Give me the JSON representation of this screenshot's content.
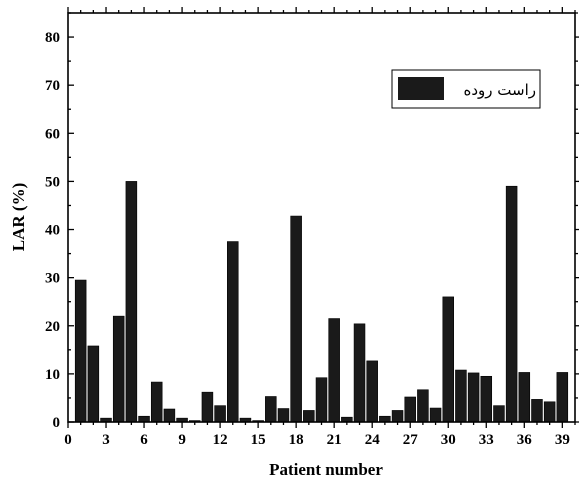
{
  "chart_data": {
    "type": "bar",
    "xlabel": "Patient number",
    "ylabel": "LAR (%)",
    "xlim": [
      0,
      40
    ],
    "ylim": [
      0,
      85
    ],
    "x_ticks": [
      0,
      3,
      6,
      9,
      12,
      15,
      18,
      21,
      24,
      27,
      30,
      33,
      36,
      39
    ],
    "y_ticks": [
      0,
      10,
      20,
      30,
      40,
      50,
      60,
      70,
      80
    ],
    "grid": false,
    "legend_position": "top-right",
    "series": [
      {
        "name": "راست روده",
        "color": "#1a1a1a",
        "x": [
          1,
          2,
          3,
          4,
          5,
          6,
          7,
          8,
          9,
          10,
          11,
          12,
          13,
          14,
          15,
          16,
          17,
          18,
          19,
          20,
          21,
          22,
          23,
          24,
          25,
          26,
          27,
          28,
          29,
          30,
          31,
          32,
          33,
          34,
          35,
          36,
          37,
          38,
          39
        ],
        "values": [
          29.5,
          15.8,
          0.8,
          22,
          50,
          1.2,
          8.3,
          2.7,
          0.8,
          0.3,
          6.2,
          3.4,
          37.5,
          0.8,
          0.3,
          5.3,
          2.8,
          42.8,
          2.4,
          9.2,
          21.5,
          1.0,
          20.4,
          12.7,
          1.2,
          2.4,
          5.2,
          6.7,
          2.9,
          26,
          10.8,
          10.2,
          9.5,
          3.4,
          49,
          10.3,
          4.7,
          4.2,
          10.3
        ]
      }
    ]
  }
}
